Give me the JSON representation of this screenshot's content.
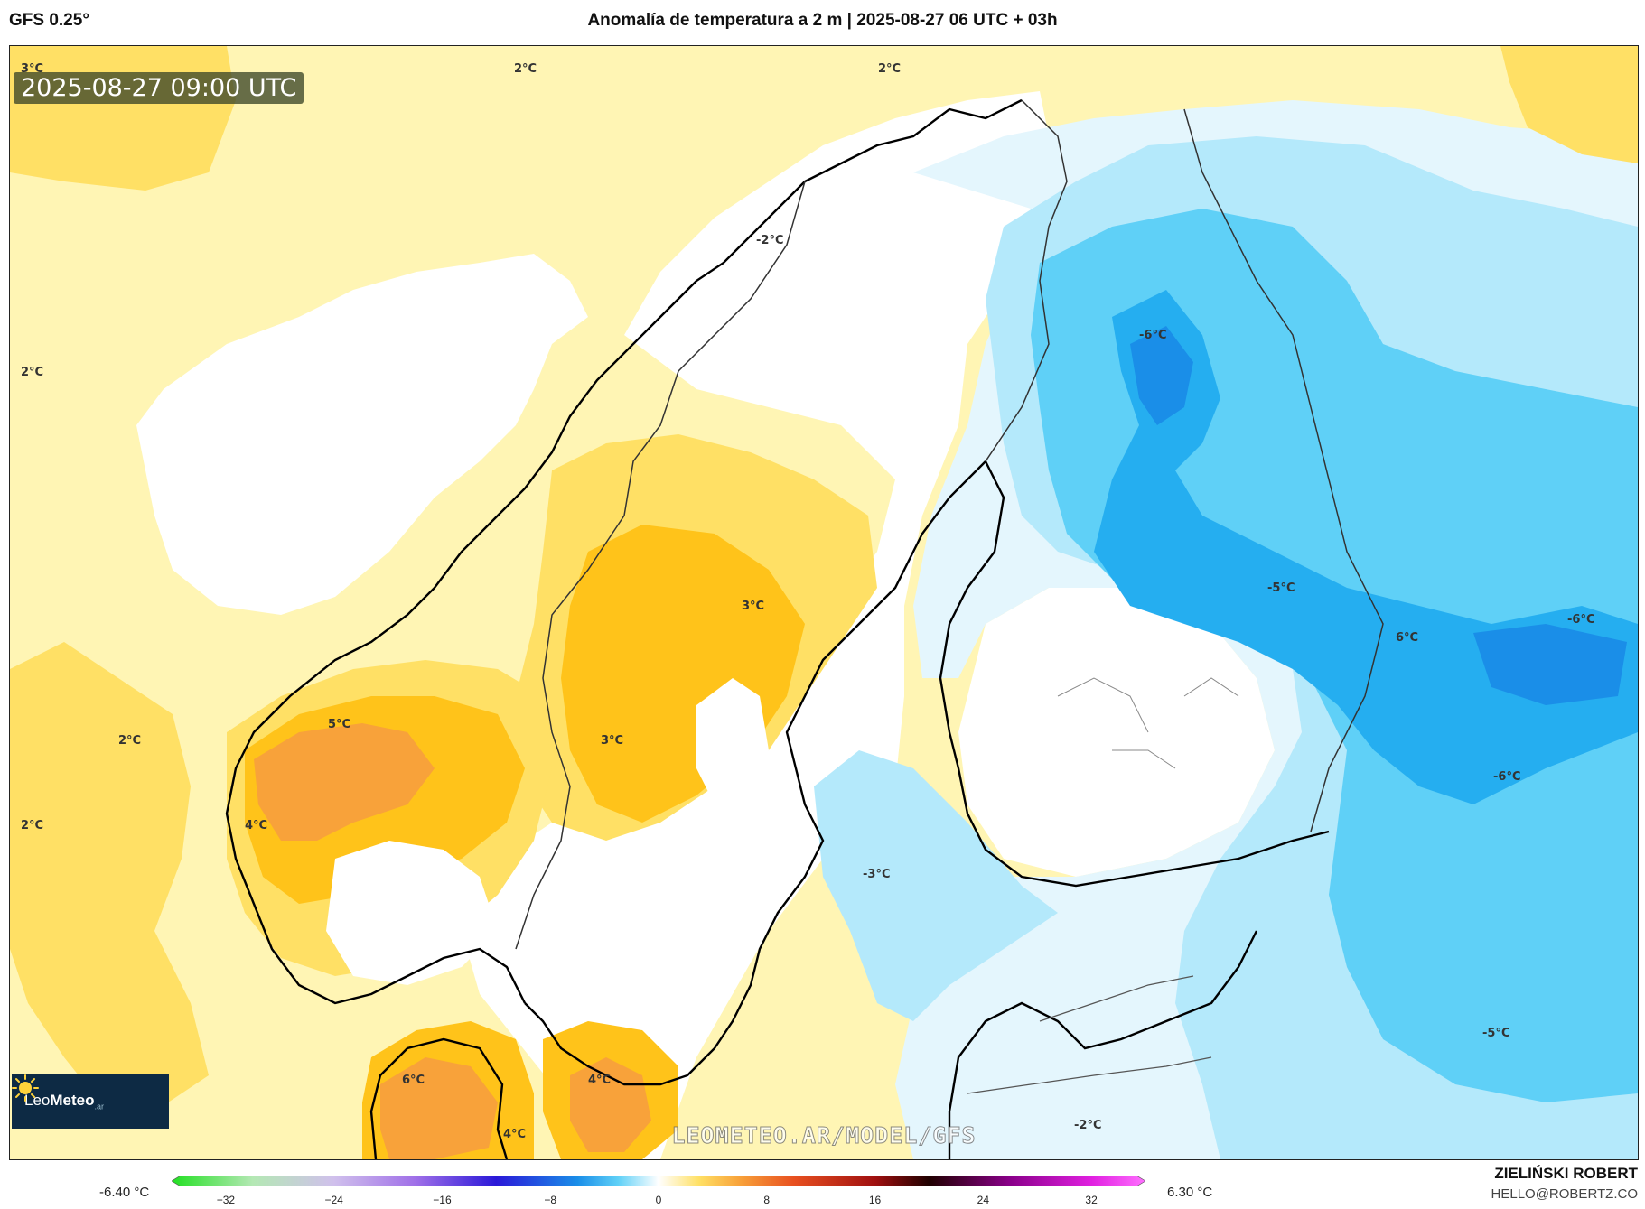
{
  "header": {
    "model": "GFS 0.25°",
    "title": "Anomalía de temperatura a 2 m | 2025-08-27 06 UTC + 03h"
  },
  "map": {
    "valid_time": "2025-08-27 09:00 UTC",
    "watermark": "LEOMETEO.AR/MODEL/GFS",
    "isotherm_labels": [
      "3°C",
      "2°C",
      "2°C",
      "2°C",
      "2°C",
      "2°C",
      "-2°C",
      "-6°C",
      "3°C",
      "5°C",
      "3°C",
      "-5°C",
      "6°C",
      "-6°C",
      "4°C",
      "-6°C",
      "-3°C",
      "-5°C",
      "6°C",
      "4°C",
      "4°C",
      "-2°C"
    ],
    "colors": {
      "warm_light": "#fff5b4",
      "neutral": "#ffffff",
      "warm_mid": "#ffe065",
      "warm_strong": "#ffc31a",
      "warm_orange": "#f8a23a",
      "cold_pale": "#e4f6fd",
      "cold_light": "#b4e9fb",
      "cold_mid": "#5fd0f7",
      "cold_strong": "#25aef0",
      "cold_deep": "#1a8ee8",
      "coast": "#000000",
      "border": "#555555"
    }
  },
  "logo": {
    "brand_prefix": "Leo",
    "brand_bold": "Meteo",
    "tld": ".ar",
    "icon": "sun-icon"
  },
  "legend": {
    "min_label": "-6.40 °C",
    "max_label": "6.30 °C",
    "unit": "°C",
    "ticks": [
      "−32",
      "−24",
      "−16",
      "−8",
      "0",
      "8",
      "16",
      "24",
      "32"
    ],
    "range": [
      -36,
      36
    ],
    "stops": [
      {
        "v": -36,
        "c": "#22e022"
      },
      {
        "v": -30,
        "c": "#b4e8b4"
      },
      {
        "v": -24,
        "c": "#d0c0ec"
      },
      {
        "v": -18,
        "c": "#a070e8"
      },
      {
        "v": -12,
        "c": "#2a18d8"
      },
      {
        "v": -6,
        "c": "#1a8ee8"
      },
      {
        "v": -3,
        "c": "#5fd0f7"
      },
      {
        "v": 0,
        "c": "#ffffff"
      },
      {
        "v": 3,
        "c": "#ffe065"
      },
      {
        "v": 6,
        "c": "#f8a23a"
      },
      {
        "v": 10,
        "c": "#e85020"
      },
      {
        "v": 16,
        "c": "#a01010"
      },
      {
        "v": 20,
        "c": "#200000"
      },
      {
        "v": 26,
        "c": "#8a008a"
      },
      {
        "v": 32,
        "c": "#e020e0"
      },
      {
        "v": 36,
        "c": "#ff70ff"
      }
    ]
  },
  "credits": {
    "author": "ZIELIŃSKI ROBERT",
    "email": "HELLO@ROBERTZ.CO"
  }
}
